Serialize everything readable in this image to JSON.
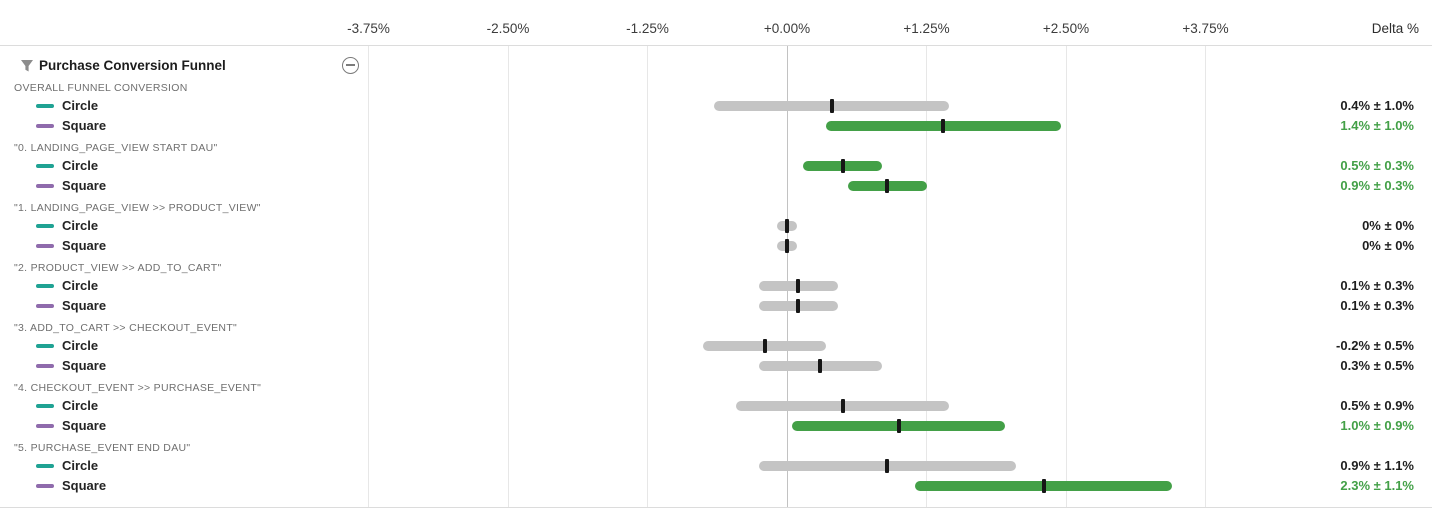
{
  "ui": {
    "panel": {
      "title": "Purchase Conversion Funnel",
      "icons": [
        "funnel-filter-icon",
        "minus-circle-collapse-icon"
      ]
    },
    "axis": {
      "delta_header": "Delta %"
    },
    "legend": {
      "variants": [
        {
          "name": "Circle",
          "color": "#1fa293"
        },
        {
          "name": "Square",
          "color": "#8f6bac"
        }
      ]
    }
  },
  "chart_data": {
    "type": "bar",
    "subtype": "horizontal-confidence-interval",
    "title": "Purchase Conversion Funnel",
    "xlabel": "Delta %",
    "xlim": [
      -4.4,
      5.8
    ],
    "grid": "vertical",
    "x_ticks": [
      {
        "label": "-3.75%",
        "value": -3.75
      },
      {
        "label": "-2.50%",
        "value": -2.5
      },
      {
        "label": "-1.25%",
        "value": -1.25
      },
      {
        "label": "+0.00%",
        "value": 0
      },
      {
        "label": "+1.25%",
        "value": 1.25
      },
      {
        "label": "+2.50%",
        "value": 2.5
      },
      {
        "label": "+3.75%",
        "value": 3.75
      }
    ],
    "colors": {
      "bar_gray": "#c4c4c4",
      "bar_green": "#43a047",
      "text_green": "#43a047",
      "text_dark": "#1f1f1f",
      "tick_black": "#161616"
    },
    "groups": [
      {
        "label": "OVERALL FUNNEL CONVERSION",
        "rows": [
          {
            "series": "Circle",
            "delta": 0.4,
            "ci": 1.0,
            "display": "0.4% ± 1.0%",
            "significant": false
          },
          {
            "series": "Square",
            "delta": 1.4,
            "ci": 1.0,
            "display": "1.4% ± 1.0%",
            "significant": true
          }
        ]
      },
      {
        "label": "\"0. LANDING_PAGE_VIEW START DAU\"",
        "rows": [
          {
            "series": "Circle",
            "delta": 0.5,
            "ci": 0.3,
            "display": "0.5% ± 0.3%",
            "significant": true
          },
          {
            "series": "Square",
            "delta": 0.9,
            "ci": 0.3,
            "display": "0.9% ± 0.3%",
            "significant": true
          }
        ]
      },
      {
        "label": "\"1. LANDING_PAGE_VIEW >> PRODUCT_VIEW\"",
        "rows": [
          {
            "series": "Circle",
            "delta": 0,
            "ci": 0,
            "display": "0% ± 0%",
            "significant": false
          },
          {
            "series": "Square",
            "delta": 0,
            "ci": 0,
            "display": "0% ± 0%",
            "significant": false
          }
        ]
      },
      {
        "label": "\"2. PRODUCT_VIEW >> ADD_TO_CART\"",
        "rows": [
          {
            "series": "Circle",
            "delta": 0.1,
            "ci": 0.3,
            "display": "0.1% ± 0.3%",
            "significant": false
          },
          {
            "series": "Square",
            "delta": 0.1,
            "ci": 0.3,
            "display": "0.1% ± 0.3%",
            "significant": false
          }
        ]
      },
      {
        "label": "\"3. ADD_TO_CART >> CHECKOUT_EVENT\"",
        "rows": [
          {
            "series": "Circle",
            "delta": -0.2,
            "ci": 0.5,
            "display": "-0.2% ± 0.5%",
            "significant": false
          },
          {
            "series": "Square",
            "delta": 0.3,
            "ci": 0.5,
            "display": "0.3% ± 0.5%",
            "significant": false
          }
        ]
      },
      {
        "label": "\"4. CHECKOUT_EVENT >> PURCHASE_EVENT\"",
        "rows": [
          {
            "series": "Circle",
            "delta": 0.5,
            "ci": 0.9,
            "display": "0.5% ± 0.9%",
            "significant": false
          },
          {
            "series": "Square",
            "delta": 1.0,
            "ci": 0.9,
            "display": "1.0% ± 0.9%",
            "significant": true
          }
        ]
      },
      {
        "label": "\"5. PURCHASE_EVENT END DAU\"",
        "rows": [
          {
            "series": "Circle",
            "delta": 0.9,
            "ci": 1.1,
            "display": "0.9% ± 1.1%",
            "significant": false
          },
          {
            "series": "Square",
            "delta": 2.3,
            "ci": 1.1,
            "display": "2.3% ± 1.1%",
            "significant": true
          }
        ]
      }
    ]
  }
}
